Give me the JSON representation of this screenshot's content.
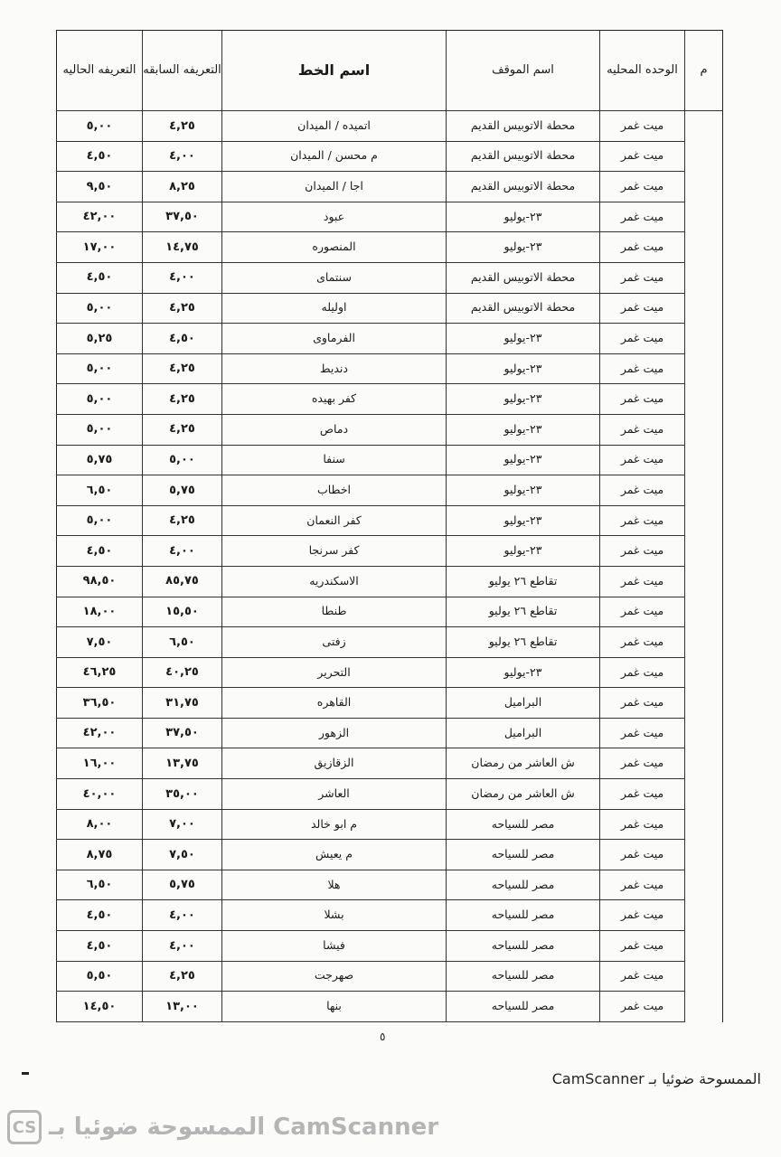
{
  "table": {
    "headers": {
      "index": "م",
      "unit": "الوحده المحليه",
      "stop": "اسم الموقف",
      "line": "اسم الخط",
      "previous_fare": "التعريفه السابقه",
      "current_fare": "التعريفه الحاليه"
    },
    "rows": [
      {
        "unit": "ميت غمر",
        "stop": "محطة الاتوبيس القديم",
        "line": "اتميده / الميدان",
        "prev": "٤,٢٥",
        "curr": "٥,٠٠"
      },
      {
        "unit": "ميت غمر",
        "stop": "محطة الاتوبيس القديم",
        "line": "م محسن / الميدان",
        "prev": "٤,٠٠",
        "curr": "٤,٥٠"
      },
      {
        "unit": "ميت غمر",
        "stop": "محطة الاتوبيس القديم",
        "line": "اجا / الميدان",
        "prev": "٨,٢٥",
        "curr": "٩,٥٠"
      },
      {
        "unit": "ميت غمر",
        "stop": "٢٣-يوليو",
        "line": "عبود",
        "prev": "٣٧,٥٠",
        "curr": "٤٢,٠٠"
      },
      {
        "unit": "ميت غمر",
        "stop": "٢٣-يوليو",
        "line": "المنصوره",
        "prev": "١٤,٧٥",
        "curr": "١٧,٠٠"
      },
      {
        "unit": "ميت غمر",
        "stop": "محطة الاتوبيس القديم",
        "line": "سنتماى",
        "prev": "٤,٠٠",
        "curr": "٤,٥٠"
      },
      {
        "unit": "ميت غمر",
        "stop": "محطة الاتوبيس القديم",
        "line": "اوليله",
        "prev": "٤,٢٥",
        "curr": "٥,٠٠"
      },
      {
        "unit": "ميت غمر",
        "stop": "٢٣-يوليو",
        "line": "الفرماوى",
        "prev": "٤,٥٠",
        "curr": "٥,٢٥"
      },
      {
        "unit": "ميت غمر",
        "stop": "٢٣-يوليو",
        "line": "دنديط",
        "prev": "٤,٢٥",
        "curr": "٥,٠٠"
      },
      {
        "unit": "ميت غمر",
        "stop": "٢٣-يوليو",
        "line": "كفر بهيده",
        "prev": "٤,٢٥",
        "curr": "٥,٠٠"
      },
      {
        "unit": "ميت غمر",
        "stop": "٢٣-يوليو",
        "line": "دماص",
        "prev": "٤,٢٥",
        "curr": "٥,٠٠"
      },
      {
        "unit": "ميت غمر",
        "stop": "٢٣-يوليو",
        "line": "سنفا",
        "prev": "٥,٠٠",
        "curr": "٥,٧٥"
      },
      {
        "unit": "ميت غمر",
        "stop": "٢٣-يوليو",
        "line": "اخطاب",
        "prev": "٥,٧٥",
        "curr": "٦,٥٠"
      },
      {
        "unit": "ميت غمر",
        "stop": "٢٣-يوليو",
        "line": "كفر النعمان",
        "prev": "٤,٢٥",
        "curr": "٥,٠٠"
      },
      {
        "unit": "ميت غمر",
        "stop": "٢٣-يوليو",
        "line": "كفر سرنجا",
        "prev": "٤,٠٠",
        "curr": "٤,٥٠"
      },
      {
        "unit": "ميت غمر",
        "stop": "تقاطع ٢٦ يوليو",
        "line": "الاسكندريه",
        "prev": "٨٥,٧٥",
        "curr": "٩٨,٥٠"
      },
      {
        "unit": "ميت غمر",
        "stop": "تقاطع ٢٦ يوليو",
        "line": "طنطا",
        "prev": "١٥,٥٠",
        "curr": "١٨,٠٠"
      },
      {
        "unit": "ميت غمر",
        "stop": "تقاطع ٢٦ يوليو",
        "line": "زفتى",
        "prev": "٦,٥٠",
        "curr": "٧,٥٠"
      },
      {
        "unit": "ميت غمر",
        "stop": "٢٣-يوليو",
        "line": "التحرير",
        "prev": "٤٠,٢٥",
        "curr": "٤٦,٢٥"
      },
      {
        "unit": "ميت غمر",
        "stop": "البراميل",
        "line": "القاهره",
        "prev": "٣١,٧٥",
        "curr": "٣٦,٥٠"
      },
      {
        "unit": "ميت غمر",
        "stop": "البراميل",
        "line": "الزهور",
        "prev": "٣٧,٥٠",
        "curr": "٤٢,٠٠"
      },
      {
        "unit": "ميت غمر",
        "stop": "ش العاشر من رمضان",
        "line": "الزقازيق",
        "prev": "١٣,٧٥",
        "curr": "١٦,٠٠"
      },
      {
        "unit": "ميت غمر",
        "stop": "ش العاشر من رمضان",
        "line": "العاشر",
        "prev": "٣٥,٠٠",
        "curr": "٤٠,٠٠"
      },
      {
        "unit": "ميت غمر",
        "stop": "مصر للسياحه",
        "line": "م ابو خالد",
        "prev": "٧,٠٠",
        "curr": "٨,٠٠"
      },
      {
        "unit": "ميت غمر",
        "stop": "مصر للسياحه",
        "line": "م يعيش",
        "prev": "٧,٥٠",
        "curr": "٨,٧٥"
      },
      {
        "unit": "ميت غمر",
        "stop": "مصر للسياحه",
        "line": "هلا",
        "prev": "٥,٧٥",
        "curr": "٦,٥٠"
      },
      {
        "unit": "ميت غمر",
        "stop": "مصر للسياحه",
        "line": "بشلا",
        "prev": "٤,٠٠",
        "curr": "٤,٥٠"
      },
      {
        "unit": "ميت غمر",
        "stop": "مصر للسياحه",
        "line": "فيشا",
        "prev": "٤,٠٠",
        "curr": "٤,٥٠"
      },
      {
        "unit": "ميت غمر",
        "stop": "مصر للسياحه",
        "line": "صهرجت",
        "prev": "٤,٢٥",
        "curr": "٥,٥٠"
      },
      {
        "unit": "ميت غمر",
        "stop": "مصر للسياحه",
        "line": "بنها",
        "prev": "١٣,٠٠",
        "curr": "١٤,٥٠"
      }
    ]
  },
  "footer": {
    "page_number": "٥",
    "scanned_with": "الممسوحة ضوئيا بـ CamScanner"
  },
  "watermark": {
    "logo": "CS",
    "text": "الممسوحة ضوئيا بـ CamScanner"
  }
}
